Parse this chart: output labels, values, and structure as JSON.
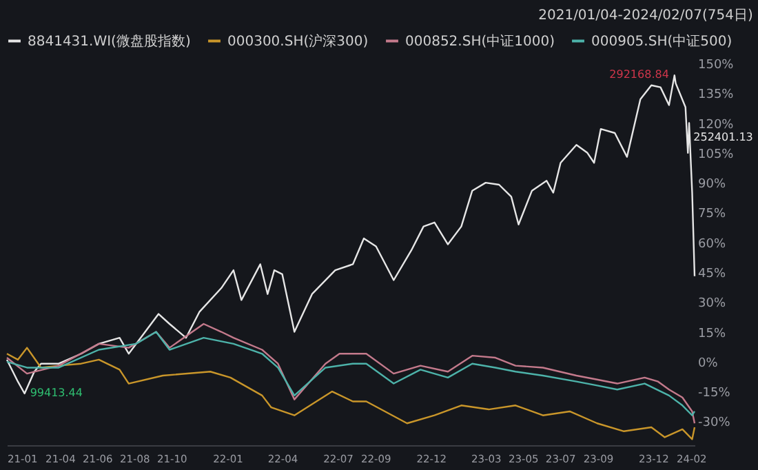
{
  "chart_data": {
    "type": "line",
    "subtitle": "2021/01/04-2024/02/07(754日)",
    "xlim": [
      "2021-01-04",
      "2024-02-07"
    ],
    "xticks": [
      {
        "value": "2021-01-04",
        "label": "21-01"
      },
      {
        "value": "2021-04-01",
        "label": "21-04"
      },
      {
        "value": "2021-06-01",
        "label": "21-06"
      },
      {
        "value": "2021-08-01",
        "label": "21-08"
      },
      {
        "value": "2021-10-01",
        "label": "21-10"
      },
      {
        "value": "2022-01-01",
        "label": "22-01"
      },
      {
        "value": "2022-04-01",
        "label": "22-04"
      },
      {
        "value": "2022-07-01",
        "label": "22-07"
      },
      {
        "value": "2022-09-01",
        "label": "22-09"
      },
      {
        "value": "2022-12-01",
        "label": "22-12"
      },
      {
        "value": "2023-03-01",
        "label": "23-03"
      },
      {
        "value": "2023-05-01",
        "label": "23-05"
      },
      {
        "value": "2023-07-01",
        "label": "23-07"
      },
      {
        "value": "2023-09-01",
        "label": "23-09"
      },
      {
        "value": "2023-12-01",
        "label": "23-12"
      },
      {
        "value": "2024-02-01",
        "label": "24-02"
      }
    ],
    "ylim": [
      -42,
      150
    ],
    "yticks": [
      {
        "value": -30,
        "label": "-30%"
      },
      {
        "value": -15,
        "label": "-15%"
      },
      {
        "value": 0,
        "label": "0%"
      },
      {
        "value": 15,
        "label": "15%"
      },
      {
        "value": 30,
        "label": "30%"
      },
      {
        "value": 45,
        "label": "45%"
      },
      {
        "value": 60,
        "label": "60%"
      },
      {
        "value": 75,
        "label": "75%"
      },
      {
        "value": 90,
        "label": "90%"
      },
      {
        "value": 105,
        "label": "105%"
      },
      {
        "value": 120,
        "label": "120%"
      },
      {
        "value": 135,
        "label": "135%"
      },
      {
        "value": 150,
        "label": "150%"
      }
    ],
    "grid": false,
    "legend": "top left",
    "marker": "none",
    "line_style": "solid",
    "series": [
      {
        "name": "8841431.WI(微盘股指数)",
        "color": "#e6e6e6",
        "x": [
          "2021-01-04",
          "2021-01-22",
          "2021-02-02",
          "2021-02-18",
          "2021-03-01",
          "2021-03-30",
          "2021-05-06",
          "2021-06-04",
          "2021-07-08",
          "2021-07-23",
          "2021-08-19",
          "2021-09-10",
          "2021-09-28",
          "2021-10-25",
          "2021-11-16",
          "2021-12-22",
          "2022-01-11",
          "2022-01-24",
          "2022-02-24",
          "2022-03-08",
          "2022-03-19",
          "2022-04-01",
          "2022-04-21",
          "2022-05-20",
          "2022-06-27",
          "2022-07-26",
          "2022-08-13",
          "2022-09-02",
          "2022-10-01",
          "2022-10-30",
          "2022-11-19",
          "2022-12-07",
          "2022-12-29",
          "2023-01-20",
          "2023-02-07",
          "2023-03-01",
          "2023-03-23",
          "2023-04-12",
          "2023-04-24",
          "2023-05-16",
          "2023-06-09",
          "2023-06-20",
          "2023-07-02",
          "2023-07-28",
          "2023-08-15",
          "2023-08-26",
          "2023-09-06",
          "2023-09-29",
          "2023-10-19",
          "2023-11-10",
          "2023-11-28",
          "2023-12-13",
          "2023-12-27",
          "2024-01-05",
          "2024-01-07",
          "2024-01-23",
          "2024-01-27",
          "2024-01-29",
          "2024-02-03",
          "2024-02-07"
        ],
        "values": [
          1,
          -10,
          -16,
          -5,
          -1,
          -1,
          4,
          9,
          12,
          4,
          15,
          24,
          19,
          12,
          25,
          37,
          46,
          31,
          49,
          34,
          46,
          44,
          15,
          34,
          46,
          49,
          62,
          58,
          41,
          56,
          68,
          70,
          59,
          68,
          86,
          90,
          89,
          83,
          69,
          86,
          91,
          85,
          100,
          109,
          105,
          100,
          117,
          115,
          103,
          132,
          139,
          138,
          129,
          144,
          140,
          128,
          105,
          120,
          85,
          43
        ]
      },
      {
        "name": "000300.SH(沪深300)",
        "color": "#c9962a",
        "x": [
          "2021-01-04",
          "2021-01-22",
          "2021-02-06",
          "2021-03-01",
          "2021-03-30",
          "2021-05-06",
          "2021-06-04",
          "2021-07-08",
          "2021-07-23",
          "2021-09-17",
          "2021-12-04",
          "2022-01-06",
          "2022-02-27",
          "2022-03-14",
          "2022-04-21",
          "2022-06-22",
          "2022-07-26",
          "2022-08-17",
          "2022-10-23",
          "2022-12-07",
          "2023-01-20",
          "2023-03-06",
          "2023-04-19",
          "2023-06-03",
          "2023-07-17",
          "2023-08-31",
          "2023-10-14",
          "2023-11-28",
          "2023-12-20",
          "2024-01-18",
          "2024-02-03",
          "2024-02-07"
        ],
        "values": [
          4,
          1,
          7,
          -3,
          -2,
          -1,
          1,
          -4,
          -11,
          -7,
          -5,
          -8,
          -17,
          -23,
          -27,
          -15,
          -20,
          -20,
          -31,
          -27,
          -22,
          -24,
          -22,
          -27,
          -25,
          -31,
          -35,
          -33,
          -38,
          -34,
          -39,
          -33
        ]
      },
      {
        "name": "000852.SH(中证1000)",
        "color": "#c47a8c",
        "x": [
          "2021-01-04",
          "2021-02-06",
          "2021-03-30",
          "2021-06-04",
          "2021-07-23",
          "2021-09-06",
          "2021-09-28",
          "2021-11-23",
          "2021-12-22",
          "2022-01-11",
          "2022-02-27",
          "2022-03-25",
          "2022-04-21",
          "2022-06-11",
          "2022-07-04",
          "2022-08-17",
          "2022-10-01",
          "2022-11-14",
          "2022-12-29",
          "2023-02-07",
          "2023-03-17",
          "2023-04-19",
          "2023-06-03",
          "2023-07-28",
          "2023-08-31",
          "2023-10-03",
          "2023-11-17",
          "2023-12-09",
          "2023-12-27",
          "2024-01-18",
          "2024-02-03",
          "2024-02-07"
        ],
        "values": [
          2,
          -6,
          -2,
          9,
          7,
          15,
          7,
          19,
          15,
          12,
          6,
          -1,
          -19,
          -1,
          4,
          4,
          -6,
          -2,
          -5,
          3,
          2,
          -2,
          -3,
          -7,
          -9,
          -11,
          -8,
          -10,
          -14,
          -18,
          -25,
          -31
        ]
      },
      {
        "name": "000905.SH(中证500)",
        "color": "#4db3aa",
        "x": [
          "2021-01-04",
          "2021-02-06",
          "2021-03-30",
          "2021-06-04",
          "2021-08-04",
          "2021-09-06",
          "2021-09-28",
          "2021-11-23",
          "2022-01-11",
          "2022-02-27",
          "2022-03-25",
          "2022-04-21",
          "2022-06-11",
          "2022-07-26",
          "2022-08-17",
          "2022-10-01",
          "2022-11-14",
          "2022-12-29",
          "2023-02-07",
          "2023-03-17",
          "2023-04-19",
          "2023-06-03",
          "2023-07-28",
          "2023-08-31",
          "2023-10-03",
          "2023-11-17",
          "2023-12-27",
          "2024-01-18",
          "2024-02-03",
          "2024-02-07"
        ],
        "values": [
          0,
          -3,
          -3,
          6,
          9,
          15,
          6,
          12,
          9,
          4,
          -3,
          -17,
          -3,
          -1,
          -1,
          -11,
          -4,
          -8,
          -1,
          -3,
          -5,
          -7,
          -10,
          -12,
          -14,
          -11,
          -17,
          -22,
          -27,
          -25
        ]
      }
    ],
    "annotations": [
      {
        "text": "292168.84",
        "x": "2024-01-05",
        "y": 144
      },
      {
        "text": "252401.13",
        "x": "2024-01-27",
        "y": 105
      },
      {
        "text": "99413.44",
        "x": "2021-02-02",
        "y": -16
      }
    ]
  }
}
